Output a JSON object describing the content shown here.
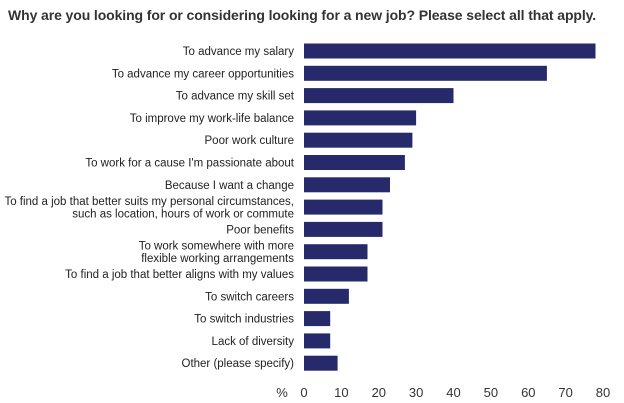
{
  "chart_data": {
    "type": "bar",
    "orientation": "horizontal",
    "title": "Why are you looking for or considering looking for a new job? Please select all that apply.",
    "xlabel": "%",
    "ylabel": "",
    "xlim": [
      0,
      80
    ],
    "xticks": [
      0,
      10,
      20,
      30,
      40,
      50,
      60,
      70,
      80
    ],
    "grid": false,
    "bar_color": "#262a6b",
    "categories": [
      [
        "To advance my salary"
      ],
      [
        "To advance my career opportunities"
      ],
      [
        "To advance my skill set"
      ],
      [
        "To improve my work-life balance"
      ],
      [
        "Poor work culture"
      ],
      [
        "To work for a cause I'm passionate about"
      ],
      [
        "Because I want a change"
      ],
      [
        "To find a job that better suits my personal circumstances,",
        "such as location, hours of work or commute"
      ],
      [
        "Poor benefits"
      ],
      [
        "To work somewhere with more",
        "flexible working arrangements"
      ],
      [
        "To find a job that better aligns with my values"
      ],
      [
        "To switch careers"
      ],
      [
        "To switch industries"
      ],
      [
        "Lack of diversity"
      ],
      [
        "Other (please specify)"
      ]
    ],
    "values": [
      78,
      65,
      40,
      30,
      29,
      27,
      23,
      21,
      21,
      17,
      17,
      12,
      7,
      7,
      9
    ]
  }
}
